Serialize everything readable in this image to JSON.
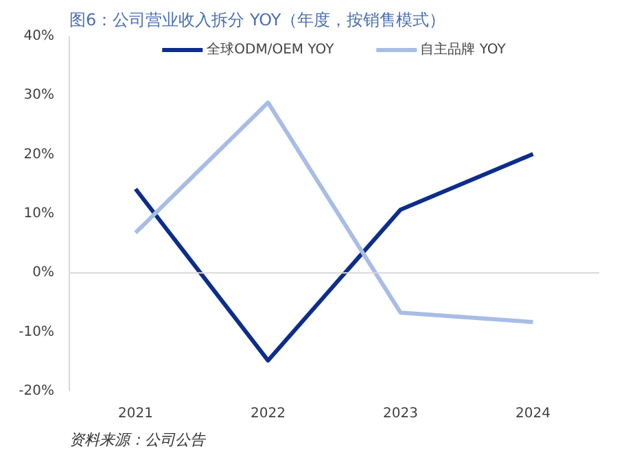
{
  "chart_data": {
    "type": "line",
    "title": "图6：公司营业收入拆分 YOY（年度，按销售模式）",
    "categories": [
      "2021",
      "2022",
      "2023",
      "2024"
    ],
    "series": [
      {
        "name": "全球ODM/OEM YOY",
        "color": "#0d2d8c",
        "values": [
          14.2,
          -14.8,
          10.7,
          20.1
        ]
      },
      {
        "name": "自主品牌 YOY",
        "color": "#a8bce6",
        "values": [
          6.8,
          28.8,
          -6.7,
          -8.3
        ]
      }
    ],
    "ylim": [
      -20,
      40
    ],
    "yticks": [
      {
        "value": -20,
        "label": "-20%"
      },
      {
        "value": -10,
        "label": "-10%"
      },
      {
        "value": 0,
        "label": "0%"
      },
      {
        "value": 10,
        "label": "10%"
      },
      {
        "value": 20,
        "label": "20%"
      },
      {
        "value": 30,
        "label": "30%"
      },
      {
        "value": 40,
        "label": "40%"
      }
    ],
    "ref_lines": [
      {
        "axis": "y",
        "value": 0,
        "label": null,
        "color": "#d9d9d9"
      }
    ],
    "grid": false,
    "legend": "top",
    "marker": "none",
    "line_style": "solid",
    "annotations": [
      "资料来源：公司公告"
    ]
  }
}
